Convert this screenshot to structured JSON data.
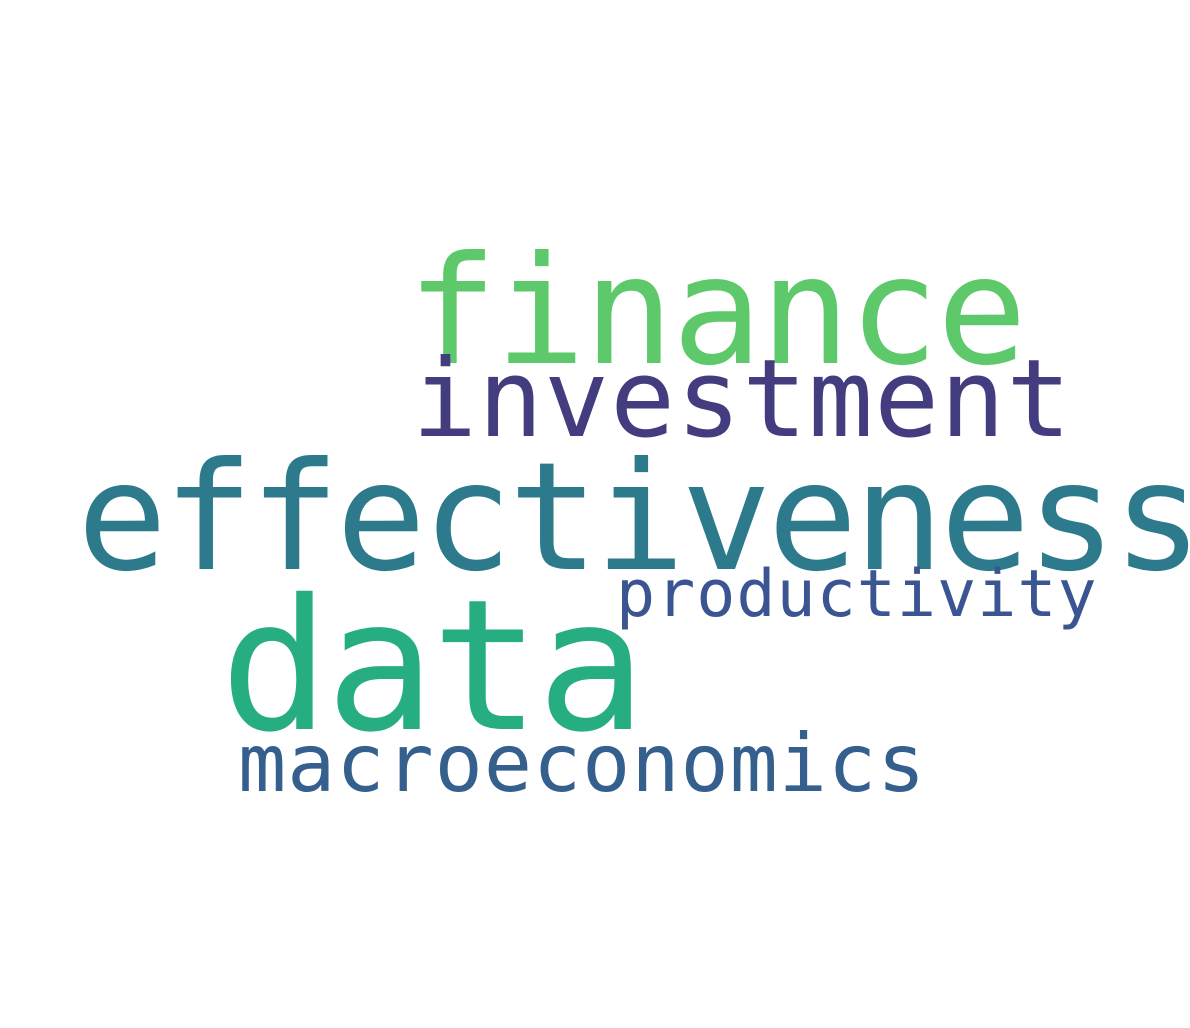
{
  "word_cloud": {
    "background_color": "#ffffff",
    "words": [
      {
        "text": "finance",
        "color": "#5ec96b"
      },
      {
        "text": "investment",
        "color": "#433d80"
      },
      {
        "text": "effectiveness",
        "color": "#2d7a8c"
      },
      {
        "text": "productivity",
        "color": "#3b5592"
      },
      {
        "text": "data",
        "color": "#27ad82"
      },
      {
        "text": "macroeconomics",
        "color": "#355f8d"
      }
    ]
  }
}
